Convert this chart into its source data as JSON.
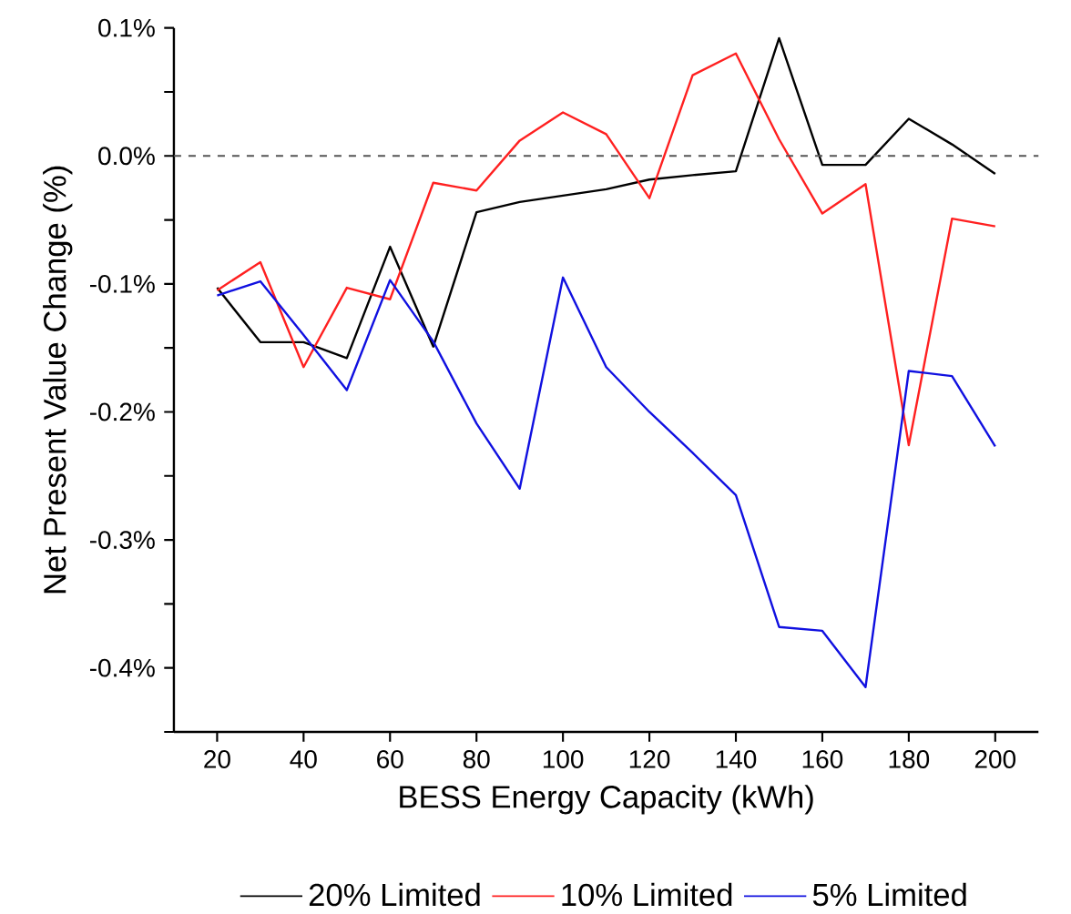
{
  "chart_data": {
    "type": "line",
    "xlabel": "BESS Energy Capacity (kWh)",
    "ylabel": "Net Present Value Change (%)",
    "x": [
      20,
      30,
      40,
      50,
      60,
      70,
      80,
      90,
      100,
      110,
      120,
      130,
      140,
      150,
      160,
      170,
      180,
      190,
      200
    ],
    "series": [
      {
        "name": "20% Limited",
        "color": "#000000",
        "values": [
          -0.103,
          -0.1455,
          -0.1455,
          -0.158,
          -0.071,
          -0.149,
          -0.044,
          -0.036,
          -0.031,
          -0.026,
          -0.0185,
          -0.015,
          -0.012,
          0.092,
          -0.007,
          -0.007,
          0.029,
          0.009,
          -0.014
        ]
      },
      {
        "name": "10% Limited",
        "color": "#ff2020",
        "values": [
          -0.105,
          -0.083,
          -0.165,
          -0.103,
          -0.112,
          -0.021,
          -0.027,
          0.012,
          0.034,
          0.017,
          -0.033,
          0.063,
          0.08,
          0.013,
          -0.045,
          -0.022,
          -0.226,
          -0.049,
          -0.055
        ]
      },
      {
        "name": "5% Limited",
        "color": "#1010e0",
        "values": [
          -0.109,
          -0.098,
          -0.14,
          -0.183,
          -0.097,
          -0.145,
          -0.209,
          -0.26,
          -0.095,
          -0.165,
          -0.2,
          -0.232,
          -0.265,
          -0.368,
          -0.371,
          -0.415,
          -0.168,
          -0.172,
          -0.227
        ]
      }
    ],
    "xlim": [
      10,
      210
    ],
    "xticks": [
      20,
      40,
      60,
      80,
      100,
      120,
      140,
      160,
      180,
      200
    ],
    "ylim": [
      -0.45,
      0.1
    ],
    "yticks": [
      {
        "value": 0.1,
        "label": "0.1%"
      },
      {
        "value": 0.05,
        "label": null
      },
      {
        "value": 0.0,
        "label": "0.0%"
      },
      {
        "value": -0.05,
        "label": null
      },
      {
        "value": -0.1,
        "label": "-0.1%"
      },
      {
        "value": -0.15,
        "label": null
      },
      {
        "value": -0.2,
        "label": "-0.2%"
      },
      {
        "value": -0.25,
        "label": null
      },
      {
        "value": -0.3,
        "label": "-0.3%"
      },
      {
        "value": -0.35,
        "label": null
      },
      {
        "value": -0.4,
        "label": "-0.4%"
      },
      {
        "value": -0.45,
        "label": null
      }
    ],
    "ref_lines": [
      {
        "axis": "y",
        "value": 0.0,
        "color": "#555555",
        "line_style": "dashed"
      }
    ],
    "legend": "bottom",
    "grid": false,
    "line_style": "solid"
  }
}
